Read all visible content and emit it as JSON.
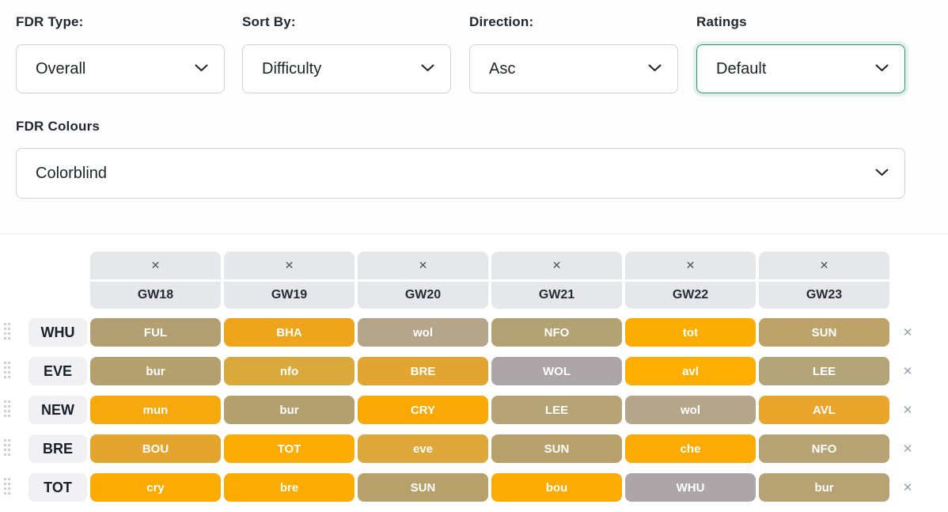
{
  "filters": {
    "fdr_type": {
      "label": "FDR Type:",
      "value": "Overall"
    },
    "sort_by": {
      "label": "Sort By:",
      "value": "Difficulty"
    },
    "direction": {
      "label": "Direction:",
      "value": "Asc"
    },
    "ratings": {
      "label": "Ratings",
      "value": "Default"
    },
    "fdr_colours": {
      "label": "FDR Colours",
      "value": "Colorblind"
    }
  },
  "ticker": {
    "column_close_icon": "✕",
    "row_close_icon": "✕",
    "gameweeks": [
      "GW18",
      "GW19",
      "GW20",
      "GW21",
      "GW22",
      "GW23"
    ],
    "rows": [
      {
        "team": "WHU",
        "fixtures": [
          {
            "opp": "FUL",
            "bg": "#b3a072"
          },
          {
            "opp": "BHA",
            "bg": "#efa51b"
          },
          {
            "opp": "wol",
            "bg": "#b5a68b"
          },
          {
            "opp": "NFO",
            "bg": "#b3a274"
          },
          {
            "opp": "tot",
            "bg": "#fcad02"
          },
          {
            "opp": "SUN",
            "bg": "#bda26a"
          }
        ]
      },
      {
        "team": "EVE",
        "fixtures": [
          {
            "opp": "bur",
            "bg": "#b3a06e"
          },
          {
            "opp": "nfo",
            "bg": "#d9a93c"
          },
          {
            "opp": "BRE",
            "bg": "#e2a531"
          },
          {
            "opp": "WOL",
            "bg": "#ada5a8"
          },
          {
            "opp": "avl",
            "bg": "#feae00"
          },
          {
            "opp": "LEE",
            "bg": "#b3a379"
          }
        ]
      },
      {
        "team": "NEW",
        "fixtures": [
          {
            "opp": "mun",
            "bg": "#f7a80d"
          },
          {
            "opp": "bur",
            "bg": "#b3a06e"
          },
          {
            "opp": "CRY",
            "bg": "#f9a806"
          },
          {
            "opp": "LEE",
            "bg": "#b6a376"
          },
          {
            "opp": "wol",
            "bg": "#b5a68b"
          },
          {
            "opp": "AVL",
            "bg": "#e9a62b"
          }
        ]
      },
      {
        "team": "BRE",
        "fixtures": [
          {
            "opp": "BOU",
            "bg": "#e3a52e"
          },
          {
            "opp": "TOT",
            "bg": "#fcac03"
          },
          {
            "opp": "eve",
            "bg": "#dda73a"
          },
          {
            "opp": "SUN",
            "bg": "#b8a06a"
          },
          {
            "opp": "che",
            "bg": "#fcab04"
          },
          {
            "opp": "NFO",
            "bg": "#b6a273"
          }
        ]
      },
      {
        "team": "TOT",
        "fixtures": [
          {
            "opp": "cry",
            "bg": "#fcab03"
          },
          {
            "opp": "bre",
            "bg": "#fcab03"
          },
          {
            "opp": "SUN",
            "bg": "#b8a06a"
          },
          {
            "opp": "bou",
            "bg": "#fcab03"
          },
          {
            "opp": "WHU",
            "bg": "#ada5a8"
          },
          {
            "opp": "bur",
            "bg": "#b6a273"
          }
        ]
      }
    ]
  },
  "colors": {
    "ratings_focus_green": "#1f9d61",
    "header_box_bg": "#e6e7ea",
    "team_box_bg": "#f1f1f4",
    "fixture_text": "#ffffff",
    "close_icon_gray": "#9aa1ab"
  }
}
